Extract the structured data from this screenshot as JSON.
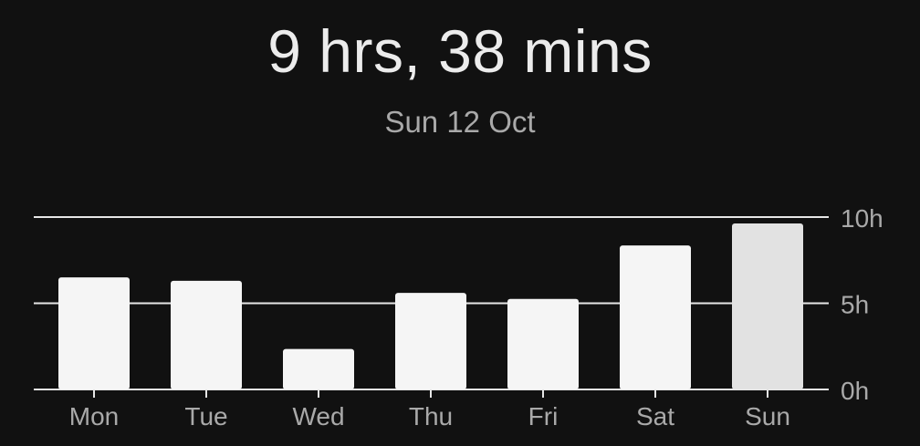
{
  "summary": {
    "total": "9 hrs, 38 mins",
    "date": "Sun 12 Oct"
  },
  "colors": {
    "background": "#111111",
    "bar": "#f5f5f5",
    "bar_selected": "#e2e2e2",
    "gridline": "#e6e6e6",
    "label": "#a9a9a9"
  },
  "chart_data": {
    "type": "bar",
    "categories": [
      "Mon",
      "Tue",
      "Wed",
      "Thu",
      "Fri",
      "Sat",
      "Sun"
    ],
    "values": [
      6.5,
      6.3,
      2.35,
      5.6,
      5.25,
      8.35,
      9.63
    ],
    "selected": "Sun",
    "ylim": [
      0,
      10
    ],
    "yticks": [
      0,
      5,
      10
    ],
    "ytick_labels": [
      "0h",
      "5h",
      "10h"
    ],
    "grid": true,
    "yaxis_side": "right"
  }
}
